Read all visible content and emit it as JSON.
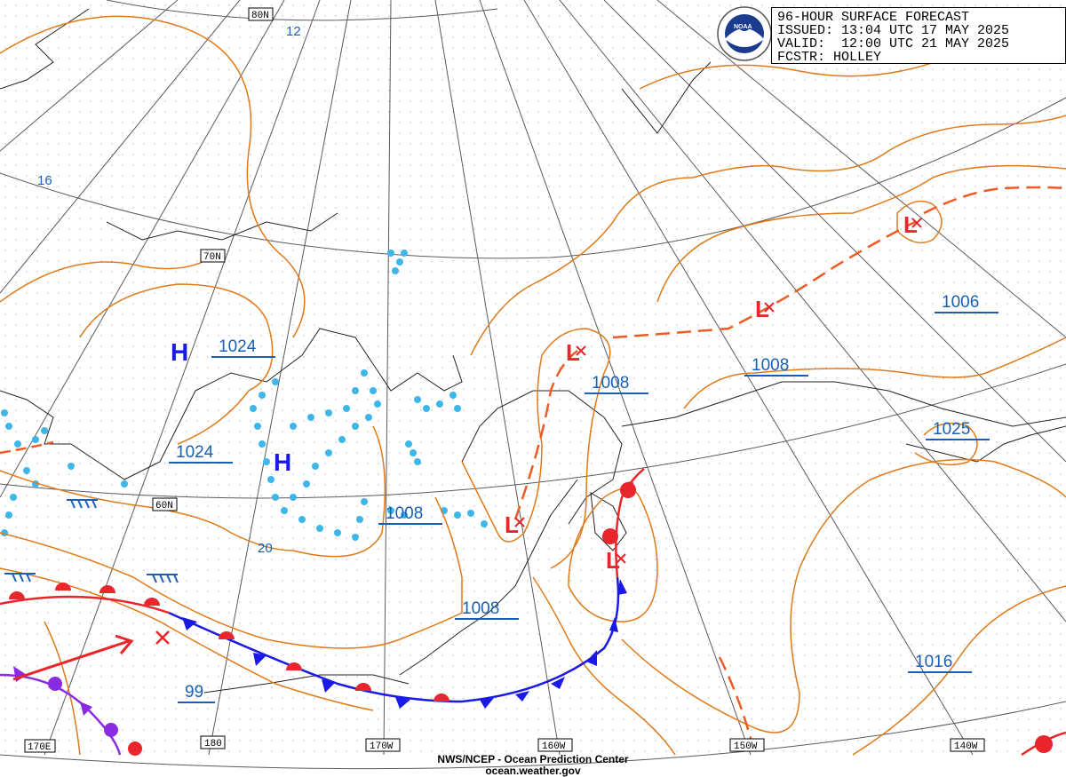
{
  "header": {
    "title": "96-HOUR SURFACE FORECAST",
    "issued": "ISSUED: 13:04 UTC 17 MAY 2025",
    "valid": "VALID:  12:00 UTC 21 MAY 2025",
    "forecaster": "FCSTR: HOLLEY",
    "logo_text": "NOAA"
  },
  "footer": {
    "line1": "NWS/NCEP - Ocean Prediction Center",
    "line2": "ocean.weather.gov"
  },
  "latitude_labels": [
    "80N",
    "70N",
    "60N"
  ],
  "longitude_labels": [
    "170E",
    "180",
    "170W",
    "160W",
    "150W",
    "140W"
  ],
  "isobar_labels": [
    "1024",
    "1024",
    "1008",
    "1008",
    "1008",
    "1008",
    "1006",
    "1025",
    "1016",
    "99"
  ],
  "contour_labels": [
    "12",
    "16",
    "20"
  ],
  "pressure_centers": [
    "H",
    "H",
    "L",
    "L",
    "L",
    "L",
    "L"
  ],
  "colors": {
    "isobar": "#e07a1a",
    "grid": "#5a5a5a",
    "coast": "#222222",
    "label": "#1a5fb4",
    "warm_front": "#e8262b",
    "cold_front": "#1a1ae6",
    "occluded_front": "#8a2be2",
    "trough": "#f05a23",
    "ice": "#3db7ea",
    "high": "#1a1ae6",
    "low": "#e8262b"
  }
}
